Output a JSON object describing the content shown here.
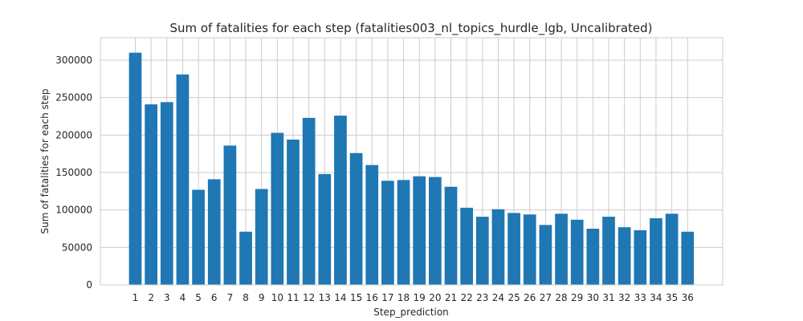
{
  "chart_data": {
    "type": "bar",
    "title": "Sum of fatalities for each step (fatalities003_nl_topics_hurdle_lgb, Uncalibrated)",
    "xlabel": "Step_prediction",
    "ylabel": "Sum of fatalities for each step",
    "categories": [
      "1",
      "2",
      "3",
      "4",
      "5",
      "6",
      "7",
      "8",
      "9",
      "10",
      "11",
      "12",
      "13",
      "14",
      "15",
      "16",
      "17",
      "18",
      "19",
      "20",
      "21",
      "22",
      "23",
      "24",
      "25",
      "26",
      "27",
      "28",
      "29",
      "30",
      "31",
      "32",
      "33",
      "34",
      "35",
      "36"
    ],
    "values": [
      310000,
      241000,
      244000,
      281000,
      127000,
      141000,
      186000,
      71000,
      128000,
      203000,
      194000,
      223000,
      148000,
      226000,
      176000,
      160000,
      139000,
      140000,
      145000,
      144000,
      131000,
      103000,
      91000,
      101000,
      96000,
      94000,
      80000,
      95000,
      87000,
      75000,
      91000,
      77000,
      73000,
      89000,
      95000,
      71000
    ],
    "ylim": [
      0,
      330000
    ],
    "yticks": [
      0,
      50000,
      100000,
      150000,
      200000,
      250000,
      300000
    ],
    "ytick_labels": [
      "0",
      "50000",
      "100000",
      "150000",
      "200000",
      "250000",
      "300000"
    ],
    "grid": true,
    "bar_color": "#1f77b4"
  }
}
